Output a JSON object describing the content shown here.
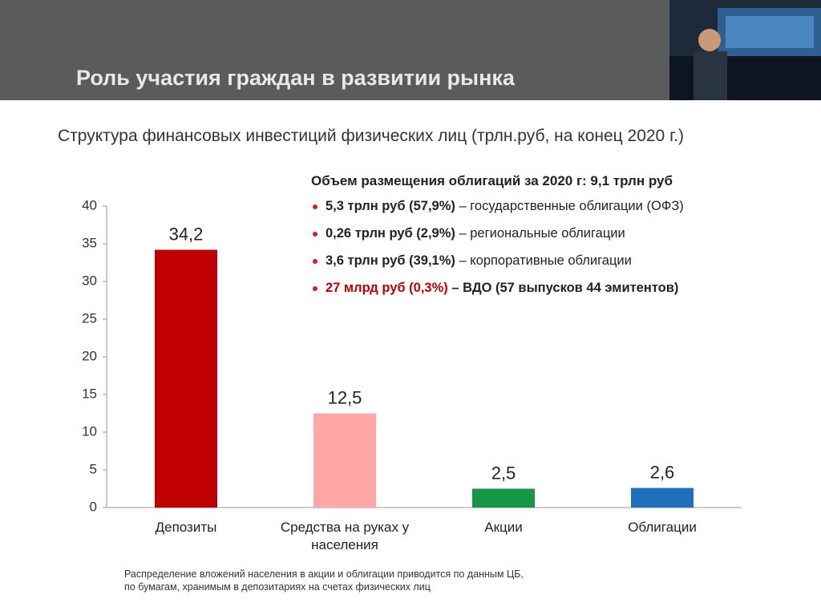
{
  "header": {
    "title": "Роль участия граждан в развитии рынка"
  },
  "chart_data": {
    "type": "bar",
    "title": "Структура финансовых инвестиций физических лиц (трлн.руб, на конец 2020 г.)",
    "categories": [
      "Депозиты",
      "Средства на руках у населения",
      "Акции",
      "Облигации"
    ],
    "values": [
      34.2,
      12.5,
      2.5,
      2.6
    ],
    "value_labels": [
      "34,2",
      "12,5",
      "2,5",
      "2,6"
    ],
    "colors": [
      "#c00000",
      "#ffa7a7",
      "#17964a",
      "#1f6fbf"
    ],
    "ylim": [
      0,
      40
    ],
    "yticks": [
      0,
      5,
      10,
      15,
      20,
      25,
      30,
      35,
      40
    ],
    "grid": false
  },
  "bonds": {
    "title": "Объем размещения облигаций за 2020 г: 9,1 трлн руб",
    "items": [
      {
        "amount": "5,3 трлн руб (57,9%)",
        "desc": "– государственные облигации (ОФЗ)"
      },
      {
        "amount": "0,26 трлн руб (2,9%)",
        "desc": "– региональные облигации"
      },
      {
        "amount": "3,6 трлн руб (39,1%)",
        "desc": "– корпоративные облигации"
      },
      {
        "amount": "27 млрд руб (0,3%)",
        "desc": "– ВДО (57 выпусков 44 эмитентов)"
      }
    ]
  },
  "note": {
    "lines": [
      "Распределение вложений населения в акции и облигации приводится по данным ЦБ,",
      "по бумагам, хранимым в депозитариях на счетах физических лиц"
    ]
  }
}
